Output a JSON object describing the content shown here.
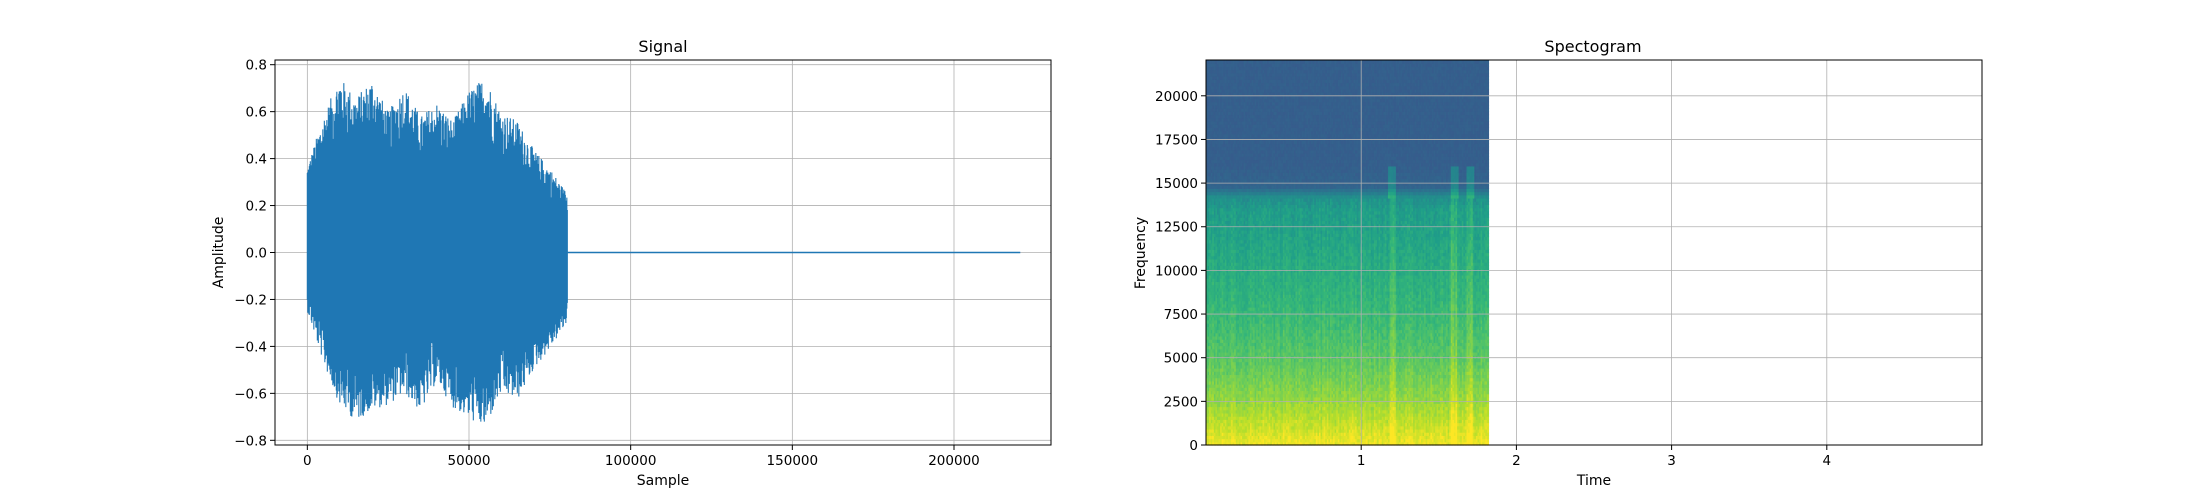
{
  "chart_data": [
    {
      "type": "line",
      "title": "Signal",
      "xlabel": "Sample",
      "ylabel": "Amplitude",
      "xlim": [
        -10000,
        230000
      ],
      "ylim": [
        -0.82,
        0.82
      ],
      "grid": true,
      "color": "#1f77b4",
      "x_ticks": [
        0,
        50000,
        100000,
        150000,
        200000
      ],
      "x_tick_labels": [
        "0",
        "50000",
        "100000",
        "150000",
        "200000"
      ],
      "y_ticks": [
        -0.8,
        -0.6,
        -0.4,
        -0.2,
        0.0,
        0.2,
        0.4,
        0.6,
        0.8
      ],
      "y_tick_labels": [
        "−0.8",
        "−0.6",
        "−0.4",
        "−0.2",
        "0.0",
        "0.2",
        "0.4",
        "0.6",
        "0.8"
      ],
      "series": [
        {
          "signal_end_sample": 80500,
          "total_samples": 220500,
          "envelope_x": [
            0,
            5000,
            10000,
            15000,
            20000,
            25000,
            30000,
            35000,
            40000,
            45000,
            50000,
            55000,
            60000,
            65000,
            70000,
            75000,
            80500
          ],
          "envelope_max": [
            0.37,
            0.58,
            0.75,
            0.66,
            0.74,
            0.6,
            0.71,
            0.58,
            0.64,
            0.56,
            0.69,
            0.75,
            0.6,
            0.56,
            0.44,
            0.36,
            0.25
          ],
          "envelope_min": [
            -0.25,
            -0.47,
            -0.65,
            -0.72,
            -0.67,
            -0.65,
            -0.6,
            -0.68,
            -0.55,
            -0.66,
            -0.71,
            -0.75,
            -0.6,
            -0.63,
            -0.5,
            -0.41,
            -0.3
          ],
          "tail_value": 0.0
        }
      ]
    },
    {
      "type": "heatmap",
      "title": "Spectogram",
      "xlabel": "Time",
      "ylabel": "Frequency",
      "xlim": [
        0,
        5
      ],
      "ylim": [
        0,
        22050
      ],
      "grid": true,
      "colormap": "viridis",
      "data_extent_time": [
        0,
        1.82
      ],
      "x_ticks": [
        1,
        2,
        3,
        4
      ],
      "x_tick_labels": [
        "1",
        "2",
        "3",
        "4"
      ],
      "y_ticks": [
        0,
        2500,
        5000,
        7500,
        10000,
        12500,
        15000,
        17500,
        20000
      ],
      "y_tick_labels": [
        "0",
        "2500",
        "5000",
        "7500",
        "10000",
        "12500",
        "15000",
        "17500",
        "20000"
      ],
      "energy_profile": {
        "frequencies": [
          0,
          1500,
          3000,
          5000,
          8000,
          11000,
          13500,
          14200,
          14800,
          16000,
          22050
        ],
        "level": [
          0.98,
          0.9,
          0.82,
          0.74,
          0.66,
          0.6,
          0.55,
          0.5,
          0.32,
          0.3,
          0.3
        ]
      },
      "cutoff_frequency": 14200,
      "event_times": [
        1.2,
        1.6,
        1.7
      ]
    }
  ]
}
